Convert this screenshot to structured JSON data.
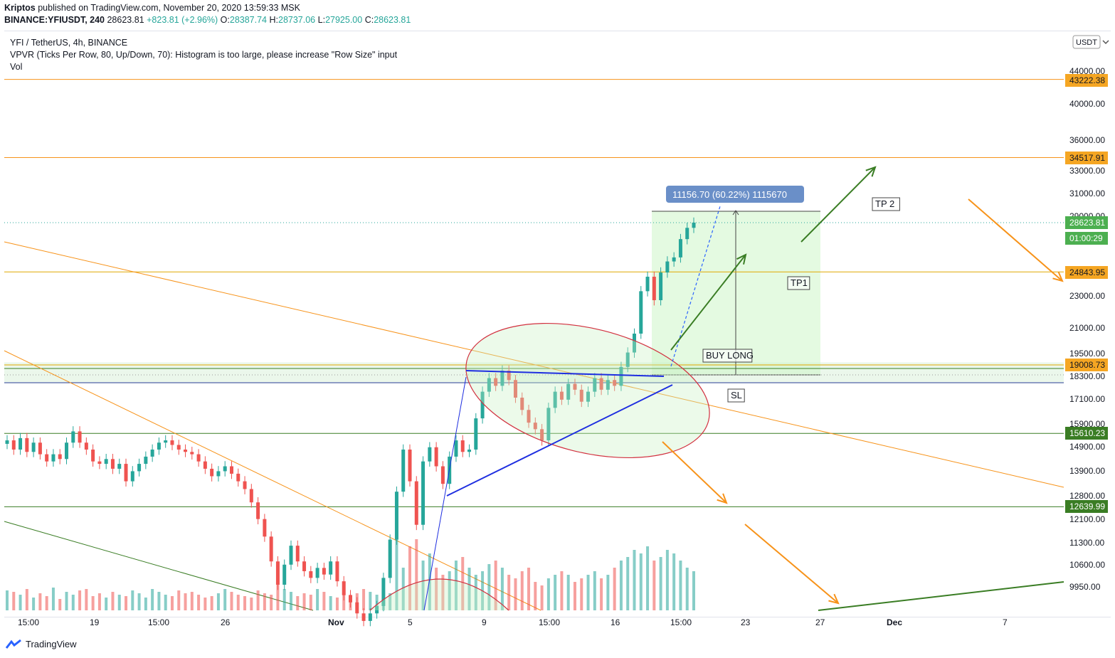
{
  "header": {
    "author": "Kriptos",
    "published": " published on TradingView.com, November 20, 2020 13:59:33 MSK",
    "symbol": "BINANCE:YFIUSDT, 240",
    "price": "28623.81",
    "change": "+823.81 (+2.96%)",
    "o_label": "O:",
    "o": "28387.74",
    "h_label": "H:",
    "h": "28737.06",
    "l_label": "L:",
    "l": "27925.00",
    "c_label": "C:",
    "c": "28623.81"
  },
  "legend": {
    "title": "YFI / TetherUS, 4h, BINANCE",
    "vpvr": "VPVR (Ticks Per Row, 80, Up/Down, 70): Histogram is too large, please increase \"Row Size\" input",
    "vol": "Vol"
  },
  "currency_button": "USDT",
  "footer": {
    "brand": "TradingView"
  },
  "colors": {
    "up": "#26a69a",
    "down": "#ef5350",
    "orange": "#f7931a",
    "green": "#3a7d24",
    "blue": "#1e2ee0",
    "red": "#d2303f"
  },
  "chart_data": {
    "type": "candlestick",
    "y_scale": "log",
    "y_ticks": [
      "44000.00",
      "40000.00",
      "36000.00",
      "33000.00",
      "31000.00",
      "29000.00",
      "27000.00",
      "25000.00",
      "23000.00",
      "21000.00",
      "19500.00",
      "18300.00",
      "17100.00",
      "15900.00",
      "14900.00",
      "13900.00",
      "12800.00",
      "12100.00",
      "11300.00",
      "10600.00",
      "9950.00"
    ],
    "x_ticks": [
      "15:00",
      "19",
      "15:00",
      "26",
      "Nov",
      "5",
      "9",
      "15:00",
      "16",
      "15:00",
      "23",
      "27",
      "Dec",
      "7"
    ],
    "price_labels": [
      {
        "value": "43222.38",
        "kind": "orange"
      },
      {
        "value": "34517.91",
        "kind": "orange"
      },
      {
        "value": "28623.81",
        "kind": "up"
      },
      {
        "value": "01:00:29",
        "kind": "up"
      },
      {
        "value": "24843.95",
        "kind": "orange"
      },
      {
        "value": "19008.73",
        "kind": "orange"
      },
      {
        "value": "15610.23",
        "kind": "green"
      },
      {
        "value": "12639.99",
        "kind": "green"
      }
    ],
    "horizontal_levels": [
      43222.38,
      34517.91,
      24843.95,
      19008.73,
      15610.23,
      12639.99
    ],
    "measure_label": "11156.70 (60.22%) 1115670",
    "annotations": [
      "TP 2",
      "TP1",
      "BUY LONG",
      "SL"
    ],
    "last_price": 28623.81,
    "countdown": "01:00:29",
    "price_path": [
      15300,
      14900,
      15400,
      14800,
      15200,
      14700,
      14400,
      14700,
      14500,
      15200,
      15700,
      15200,
      14900,
      14400,
      14300,
      14500,
      14100,
      14300,
      13600,
      14000,
      14300,
      14600,
      14900,
      15200,
      15300,
      15100,
      14900,
      14800,
      14700,
      14400,
      14100,
      13800,
      14000,
      14200,
      13900,
      13600,
      13300,
      12800,
      12200,
      11600,
      10800,
      10100,
      10700,
      11300,
      10800,
      10500,
      10300,
      10600,
      10400,
      10800,
      10200,
      9800,
      9600,
      9300,
      9100,
      9300,
      9500,
      10300,
      11500,
      13200,
      14900,
      13600,
      12000,
      14400,
      15000,
      14200,
      13500,
      14600,
      15300,
      14800,
      14900,
      16300,
      17600,
      18300,
      17900,
      18700,
      18200,
      17300,
      16700,
      16100,
      15800,
      15300,
      16800,
      17600,
      17200,
      18000,
      17700,
      17100,
      17600,
      18300,
      17700,
      18200,
      17900,
      18900,
      19700,
      20800,
      23500,
      24500,
      22900,
      24800,
      25600,
      25900,
      27300,
      28200,
      28623
    ],
    "volume_heights": [
      28,
      26,
      22,
      30,
      18,
      24,
      20,
      32,
      16,
      26,
      22,
      28,
      30,
      20,
      24,
      18,
      26,
      22,
      20,
      28,
      24,
      18,
      30,
      26,
      22,
      20,
      28,
      24,
      26,
      22,
      18,
      20,
      24,
      30,
      26,
      22,
      20,
      18,
      28,
      24,
      22,
      40,
      30,
      26,
      20,
      24,
      22,
      30,
      26,
      20,
      18,
      28,
      22,
      24,
      30,
      26,
      22,
      20,
      24,
      150,
      60,
      90,
      100,
      70,
      80,
      60,
      50,
      55,
      70,
      75,
      60,
      50,
      55,
      65,
      70,
      60,
      50,
      45,
      55,
      60,
      40,
      35,
      45,
      50,
      55,
      50,
      40,
      45,
      50,
      55,
      45,
      50,
      60,
      70,
      75,
      85,
      80,
      90,
      70,
      75,
      85,
      80,
      70,
      60,
      55
    ]
  }
}
